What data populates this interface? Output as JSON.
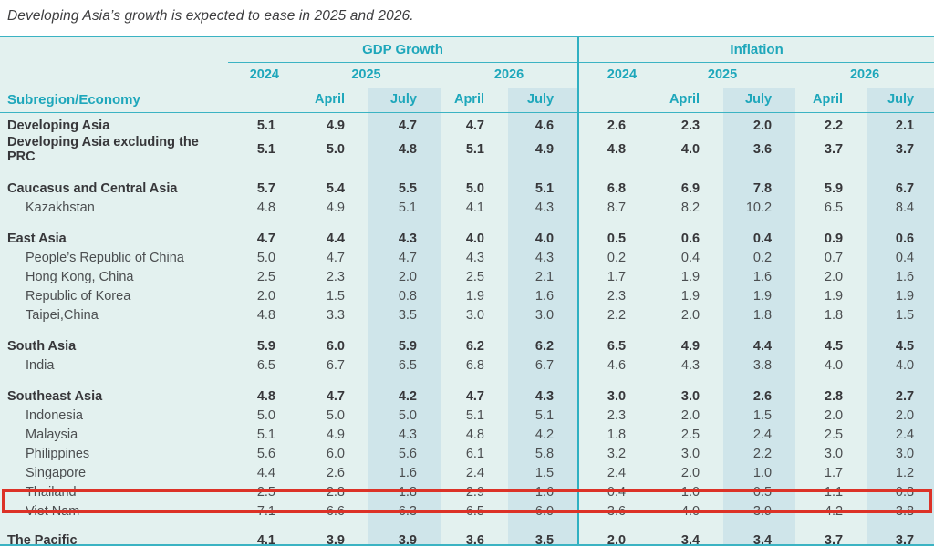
{
  "chart_data": {
    "type": "table",
    "title": "Developing Asia’s growth is expected to ease in 2025 and 2026.",
    "column_groups": [
      "GDP Growth",
      "Inflation"
    ],
    "years": [
      "2024",
      "2025",
      "2026"
    ],
    "subcolumns": [
      "2024",
      "2025 April",
      "2025 July",
      "2026 April",
      "2026 July"
    ],
    "highlighted_columns": [
      "2025 July",
      "2026 July"
    ],
    "rows": [
      {
        "label": "Developing Asia",
        "bold": true,
        "indent": false,
        "gdp": [
          "5.1",
          "4.9",
          "4.7",
          "4.7",
          "4.6"
        ],
        "inflation": [
          "2.6",
          "2.3",
          "2.0",
          "2.2",
          "2.1"
        ]
      },
      {
        "label": "Developing Asia excluding the PRC",
        "bold": true,
        "indent": false,
        "gdp": [
          "5.1",
          "5.0",
          "4.8",
          "5.1",
          "4.9"
        ],
        "inflation": [
          "4.8",
          "4.0",
          "3.6",
          "3.7",
          "3.7"
        ]
      },
      {
        "label": "Caucasus and Central Asia",
        "bold": true,
        "indent": false,
        "gap_before": 16,
        "gdp": [
          "5.7",
          "5.4",
          "5.5",
          "5.0",
          "5.1"
        ],
        "inflation": [
          "6.8",
          "6.9",
          "7.8",
          "5.9",
          "6.7"
        ]
      },
      {
        "label": "Kazakhstan",
        "bold": false,
        "indent": true,
        "gdp": [
          "4.8",
          "4.9",
          "5.1",
          "4.1",
          "4.3"
        ],
        "inflation": [
          "8.7",
          "8.2",
          "10.2",
          "6.5",
          "8.4"
        ]
      },
      {
        "label": "East Asia",
        "bold": true,
        "indent": false,
        "gap_before": 13,
        "gdp": [
          "4.7",
          "4.4",
          "4.3",
          "4.0",
          "4.0"
        ],
        "inflation": [
          "0.5",
          "0.6",
          "0.4",
          "0.9",
          "0.6"
        ]
      },
      {
        "label": "People’s Republic of China",
        "bold": false,
        "indent": true,
        "gdp": [
          "5.0",
          "4.7",
          "4.7",
          "4.3",
          "4.3"
        ],
        "inflation": [
          "0.2",
          "0.4",
          "0.2",
          "0.7",
          "0.4"
        ]
      },
      {
        "label": "Hong Kong, China",
        "bold": false,
        "indent": true,
        "gdp": [
          "2.5",
          "2.3",
          "2.0",
          "2.5",
          "2.1"
        ],
        "inflation": [
          "1.7",
          "1.9",
          "1.6",
          "2.0",
          "1.6"
        ]
      },
      {
        "label": "Republic of Korea",
        "bold": false,
        "indent": true,
        "gdp": [
          "2.0",
          "1.5",
          "0.8",
          "1.9",
          "1.6"
        ],
        "inflation": [
          "2.3",
          "1.9",
          "1.9",
          "1.9",
          "1.9"
        ]
      },
      {
        "label": "Taipei,China",
        "bold": false,
        "indent": true,
        "gdp": [
          "4.8",
          "3.3",
          "3.5",
          "3.0",
          "3.0"
        ],
        "inflation": [
          "2.2",
          "2.0",
          "1.8",
          "1.8",
          "1.5"
        ]
      },
      {
        "label": "South Asia",
        "bold": true,
        "indent": false,
        "gap_before": 13,
        "gdp": [
          "5.9",
          "6.0",
          "5.9",
          "6.2",
          "6.2"
        ],
        "inflation": [
          "6.5",
          "4.9",
          "4.4",
          "4.5",
          "4.5"
        ]
      },
      {
        "label": "India",
        "bold": false,
        "indent": true,
        "gdp": [
          "6.5",
          "6.7",
          "6.5",
          "6.8",
          "6.7"
        ],
        "inflation": [
          "4.6",
          "4.3",
          "3.8",
          "4.0",
          "4.0"
        ]
      },
      {
        "label": "Southeast Asia",
        "bold": true,
        "indent": false,
        "gap_before": 13,
        "gdp": [
          "4.8",
          "4.7",
          "4.2",
          "4.7",
          "4.3"
        ],
        "inflation": [
          "3.0",
          "3.0",
          "2.6",
          "2.8",
          "2.7"
        ]
      },
      {
        "label": "Indonesia",
        "bold": false,
        "indent": true,
        "gdp": [
          "5.0",
          "5.0",
          "5.0",
          "5.1",
          "5.1"
        ],
        "inflation": [
          "2.3",
          "2.0",
          "1.5",
          "2.0",
          "2.0"
        ]
      },
      {
        "label": "Malaysia",
        "bold": false,
        "indent": true,
        "gdp": [
          "5.1",
          "4.9",
          "4.3",
          "4.8",
          "4.2"
        ],
        "inflation": [
          "1.8",
          "2.5",
          "2.4",
          "2.5",
          "2.4"
        ]
      },
      {
        "label": "Philippines",
        "bold": false,
        "indent": true,
        "gdp": [
          "5.6",
          "6.0",
          "5.6",
          "6.1",
          "5.8"
        ],
        "inflation": [
          "3.2",
          "3.0",
          "2.2",
          "3.0",
          "3.0"
        ]
      },
      {
        "label": "Singapore",
        "bold": false,
        "indent": true,
        "gdp": [
          "4.4",
          "2.6",
          "1.6",
          "2.4",
          "1.5"
        ],
        "inflation": [
          "2.4",
          "2.0",
          "1.0",
          "1.7",
          "1.2"
        ]
      },
      {
        "label": "Thailand",
        "bold": false,
        "indent": true,
        "gdp": [
          "2.5",
          "2.8",
          "1.8",
          "2.9",
          "1.6"
        ],
        "inflation": [
          "0.4",
          "1.0",
          "0.5",
          "1.1",
          "0.8"
        ]
      },
      {
        "label": "Viet Nam",
        "bold": false,
        "indent": true,
        "highlighted": true,
        "gdp": [
          "7.1",
          "6.6",
          "6.3",
          "6.5",
          "6.0"
        ],
        "inflation": [
          "3.6",
          "4.0",
          "3.9",
          "4.2",
          "3.8"
        ]
      },
      {
        "label": "The Pacific",
        "bold": true,
        "indent": false,
        "gap_before": 11,
        "gdp": [
          "4.1",
          "3.9",
          "3.9",
          "3.6",
          "3.5"
        ],
        "inflation": [
          "2.0",
          "3.4",
          "3.4",
          "3.7",
          "3.7"
        ]
      }
    ]
  },
  "header": {
    "gdp_label": "GDP Growth",
    "inflation_label": "Inflation",
    "y2024": "2024",
    "y2025": "2025",
    "y2026": "2026",
    "april": "April",
    "july": "July",
    "row_header": "Subregion/Economy"
  },
  "colors": {
    "accent_teal": "#1ea7bb",
    "rule_teal": "#3bb3c3",
    "table_background": "#e3f1ef",
    "july_column_band": "#cfe5ea",
    "highlight_box_red": "#dc3227",
    "bold_text": "#37373a",
    "regular_text": "#4b4e50"
  }
}
